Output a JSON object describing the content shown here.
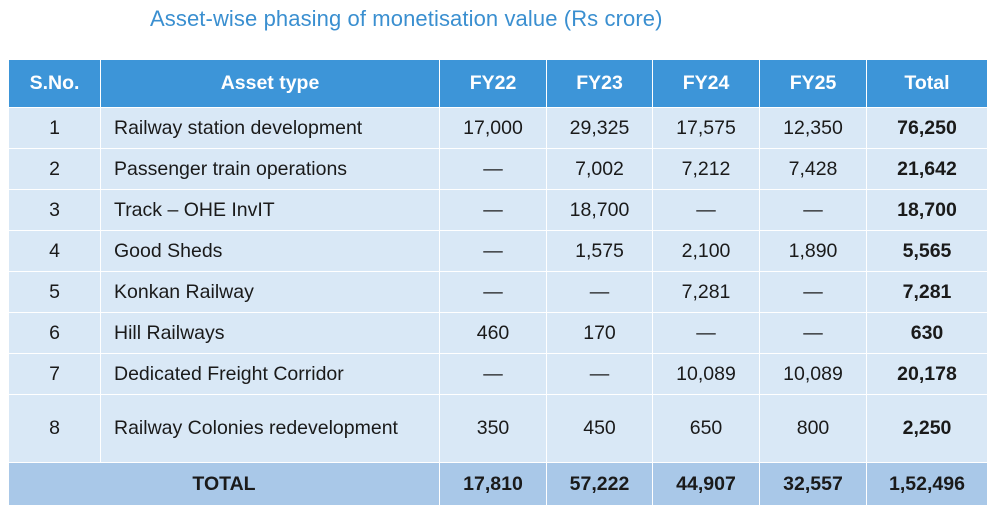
{
  "title": "Asset-wise phasing of monetisation value (Rs crore)",
  "table": {
    "headers": {
      "sno": "S.No.",
      "asset_type": "Asset type",
      "fy22": "FY22",
      "fy23": "FY23",
      "fy24": "FY24",
      "fy25": "FY25",
      "total": "Total"
    },
    "rows": [
      {
        "sno": "1",
        "asset_type": "Railway station development",
        "fy22": "17,000",
        "fy23": "29,325",
        "fy24": "17,575",
        "fy25": "12,350",
        "total": "76,250"
      },
      {
        "sno": "2",
        "asset_type": "Passenger train operations",
        "fy22": "—",
        "fy23": "7,002",
        "fy24": "7,212",
        "fy25": "7,428",
        "total": "21,642"
      },
      {
        "sno": "3",
        "asset_type": "Track – OHE InvIT",
        "fy22": "—",
        "fy23": "18,700",
        "fy24": "—",
        "fy25": "—",
        "total": "18,700"
      },
      {
        "sno": "4",
        "asset_type": "Good Sheds",
        "fy22": "—",
        "fy23": "1,575",
        "fy24": "2,100",
        "fy25": "1,890",
        "total": "5,565"
      },
      {
        "sno": "5",
        "asset_type": "Konkan Railway",
        "fy22": "—",
        "fy23": "—",
        "fy24": "7,281",
        "fy25": "—",
        "total": "7,281"
      },
      {
        "sno": "6",
        "asset_type": "Hill Railways",
        "fy22": "460",
        "fy23": "170",
        "fy24": "—",
        "fy25": "—",
        "total": "630"
      },
      {
        "sno": "7",
        "asset_type": "Dedicated Freight Corridor",
        "fy22": "—",
        "fy23": "—",
        "fy24": "10,089",
        "fy25": "10,089",
        "total": "20,178"
      },
      {
        "sno": "8",
        "asset_type": "Railway Colonies redevelopment",
        "fy22": "350",
        "fy23": "450",
        "fy24": "650",
        "fy25": "800",
        "total": "2,250"
      }
    ],
    "footer": {
      "label": "TOTAL",
      "fy22": "17,810",
      "fy23": "57,222",
      "fy24": "44,907",
      "fy25": "32,557",
      "total": "1,52,496"
    }
  }
}
